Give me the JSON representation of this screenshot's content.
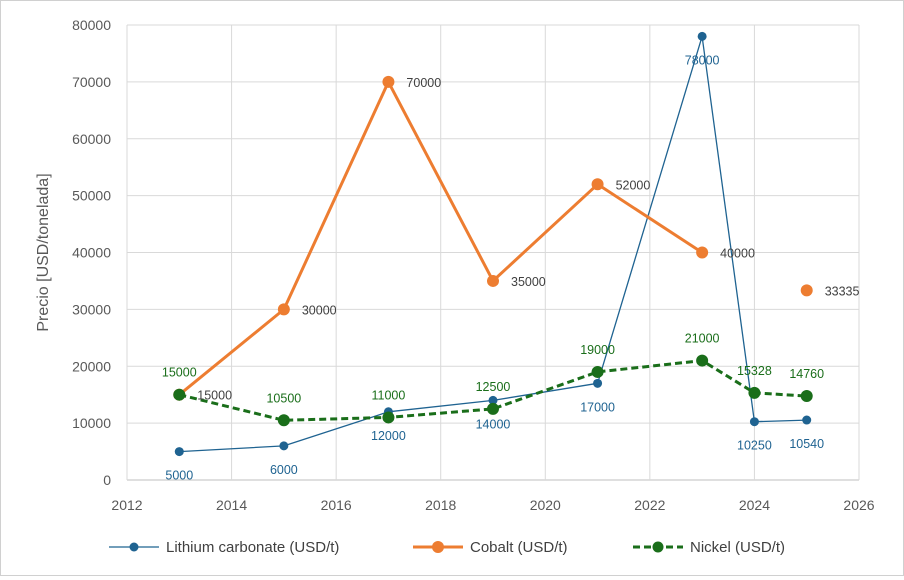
{
  "chart_data": {
    "type": "line",
    "title": "",
    "xlabel": "",
    "ylabel": "Precio [USD/tonelada]",
    "xlim": [
      2012,
      2026
    ],
    "ylim": [
      0,
      80000
    ],
    "x_ticks": [
      2012,
      2014,
      2016,
      2018,
      2020,
      2022,
      2024,
      2026
    ],
    "y_ticks": [
      0,
      10000,
      20000,
      30000,
      40000,
      50000,
      60000,
      70000,
      80000
    ],
    "grid": true,
    "legend_position": "bottom",
    "series": [
      {
        "name": "Lithium carbonate (USD/t)",
        "color": "#1f6391",
        "style": "solid-thin",
        "x": [
          2013,
          2015,
          2017,
          2019,
          2021,
          2023,
          2024,
          2025
        ],
        "values": [
          5000,
          6000,
          12000,
          14000,
          17000,
          78000,
          10250,
          10540
        ],
        "label_position": "below"
      },
      {
        "name": "Cobalt (USD/t)",
        "color": "#ed7d31",
        "style": "solid-thick",
        "segments": [
          [
            0,
            5
          ]
        ],
        "x": [
          2013,
          2015,
          2017,
          2019,
          2021,
          2023,
          2025
        ],
        "values": [
          15000,
          30000,
          70000,
          35000,
          52000,
          40000,
          33335
        ],
        "label_position": "right"
      },
      {
        "name": "Nickel (USD/t)",
        "color": "#1a6e1a",
        "style": "dashed",
        "x": [
          2013,
          2015,
          2017,
          2019,
          2021,
          2023,
          2024,
          2025
        ],
        "values": [
          15000,
          10500,
          11000,
          12500,
          19000,
          21000,
          15328,
          14760
        ],
        "label_position": "above"
      }
    ]
  }
}
